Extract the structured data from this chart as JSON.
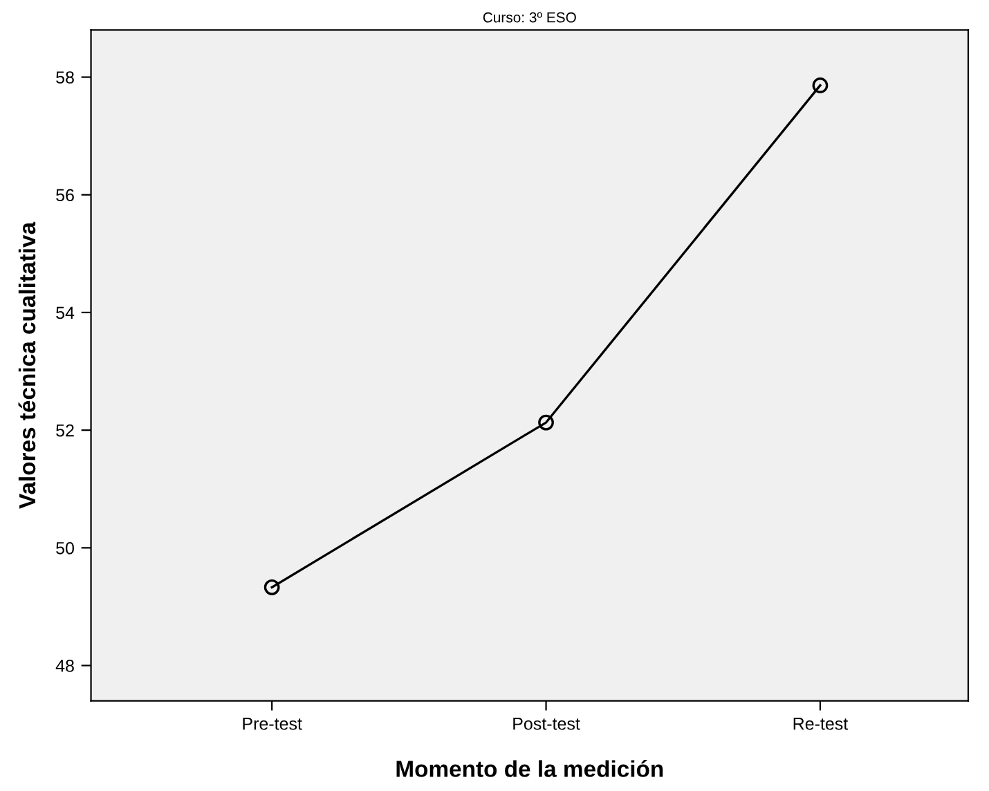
{
  "chart_data": {
    "type": "line",
    "title": "Curso: 3º ESO",
    "xlabel": "Momento de la medición",
    "ylabel": "Valores técnica cualitativa",
    "categories": [
      "Pre-test",
      "Post-test",
      "Re-test"
    ],
    "series": [
      {
        "color": "#000000",
        "values": [
          49.33,
          52.13,
          57.86
        ]
      }
    ],
    "ylim": [
      47.4,
      58.8
    ],
    "yticks": [
      48,
      50,
      52,
      54,
      56,
      58
    ],
    "grid": false,
    "legend": false,
    "marker": "circle",
    "line_style": "solid"
  }
}
